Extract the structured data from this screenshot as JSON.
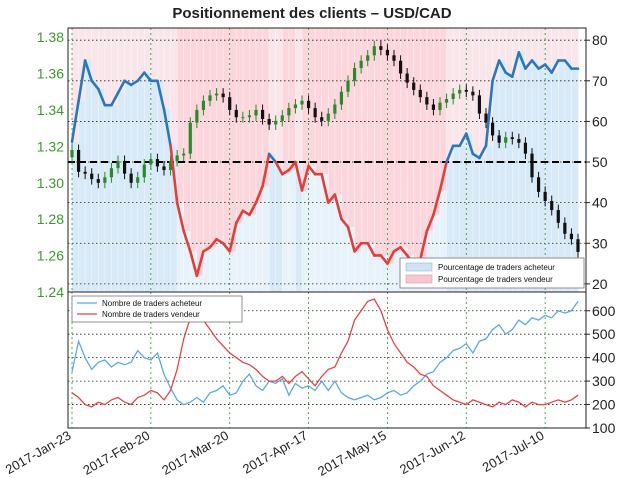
{
  "chart_data": [
    {
      "type": "candlestick+area",
      "title": "Positionnement des clients – USD/CAD",
      "left_axis": {
        "ticks": [
          "1.24",
          "1.26",
          "1.28",
          "1.30",
          "1.32",
          "1.34",
          "1.36",
          "1.38"
        ],
        "range": [
          1.24,
          1.385
        ]
      },
      "right_axis": {
        "ticks": [
          "20",
          "30",
          "40",
          "50",
          "60",
          "70",
          "80"
        ],
        "range": [
          18,
          83
        ]
      },
      "reference_line": 50,
      "x_ticks": [
        "2017-Jan-23",
        "2017-Feb-20",
        "2017-Mar-20",
        "2017-Apr-17",
        "2017-May-15",
        "2017-Jun-12",
        "2017-Jul-10"
      ],
      "legend": [
        "Pourcentage de traders acheteur",
        "Pourcentage de traders vendeur"
      ],
      "price_close": [
        1.318,
        1.306,
        1.305,
        1.302,
        1.3,
        1.303,
        1.308,
        1.312,
        1.305,
        1.3,
        1.303,
        1.31,
        1.313,
        1.309,
        1.307,
        1.312,
        1.315,
        1.316,
        1.333,
        1.34,
        1.345,
        1.348,
        1.349,
        1.347,
        1.34,
        1.336,
        1.336,
        1.337,
        1.34,
        1.335,
        1.332,
        1.334,
        1.337,
        1.341,
        1.343,
        1.345,
        1.341,
        1.336,
        1.334,
        1.338,
        1.343,
        1.35,
        1.356,
        1.363,
        1.367,
        1.37,
        1.375,
        1.373,
        1.37,
        1.367,
        1.36,
        1.355,
        1.351,
        1.347,
        1.343,
        1.34,
        1.344,
        1.346,
        1.349,
        1.351,
        1.35,
        1.348,
        1.338,
        1.333,
        1.326,
        1.322,
        1.325,
        1.324,
        1.322,
        1.316,
        1.303,
        1.295,
        1.29,
        1.285,
        1.278,
        1.272,
        1.269,
        1.262
      ],
      "pct_long": [
        55,
        65,
        75,
        70,
        68,
        64,
        64,
        67,
        70,
        69,
        70,
        72,
        70,
        70,
        63,
        54,
        40,
        33,
        28,
        22,
        28,
        29,
        31,
        30,
        28,
        35,
        38,
        37,
        40,
        44,
        52,
        50,
        47,
        48,
        50,
        43,
        49,
        47,
        47,
        40,
        42,
        36,
        34,
        28,
        30,
        30,
        27,
        27,
        25,
        28,
        29,
        27,
        25,
        26,
        33,
        37,
        43,
        50,
        54,
        54,
        57,
        52,
        51,
        54,
        70,
        75,
        72,
        71,
        77,
        73,
        75,
        73,
        74,
        72,
        75,
        75,
        73,
        73
      ],
      "value_unit_left": "price",
      "value_unit_right": "%"
    },
    {
      "type": "line",
      "y_ticks": [
        "100",
        "200",
        "300",
        "400",
        "500",
        "600"
      ],
      "ylim": [
        100,
        680
      ],
      "legend": [
        "Nombre de traders acheteur",
        "Nombre de traders vendeur"
      ],
      "series": [
        {
          "name": "Nombre de traders acheteur",
          "color": "#5aaae6",
          "values": [
            340,
            470,
            400,
            350,
            380,
            390,
            360,
            380,
            370,
            380,
            430,
            400,
            390,
            420,
            330,
            270,
            220,
            200,
            210,
            230,
            210,
            250,
            260,
            280,
            240,
            250,
            300,
            330,
            280,
            260,
            300,
            290,
            310,
            240,
            290,
            270,
            280,
            260,
            300,
            260,
            300,
            250,
            230,
            220,
            230,
            240,
            220,
            230,
            250,
            260,
            240,
            250,
            280,
            300,
            330,
            340,
            380,
            400,
            430,
            440,
            460,
            420,
            470,
            480,
            520,
            540,
            500,
            520,
            560,
            540,
            570,
            560,
            580,
            570,
            600,
            590,
            600,
            640
          ]
        },
        {
          "name": "Nombre de traders vendeur",
          "color": "#e34545",
          "values": [
            250,
            230,
            200,
            190,
            210,
            200,
            220,
            230,
            210,
            200,
            230,
            240,
            260,
            250,
            220,
            260,
            350,
            480,
            570,
            600,
            560,
            520,
            480,
            450,
            420,
            400,
            380,
            370,
            350,
            320,
            300,
            300,
            320,
            290,
            320,
            340,
            310,
            280,
            320,
            350,
            360,
            420,
            470,
            560,
            600,
            640,
            650,
            600,
            520,
            460,
            420,
            380,
            360,
            330,
            320,
            280,
            260,
            240,
            220,
            210,
            200,
            220,
            210,
            200,
            190,
            210,
            200,
            220,
            210,
            190,
            210,
            200,
            200,
            210,
            220,
            210,
            220,
            240
          ]
        }
      ]
    }
  ]
}
